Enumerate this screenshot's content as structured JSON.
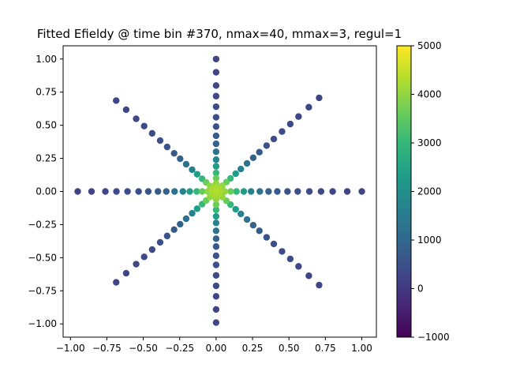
{
  "chart_data": {
    "type": "scatter",
    "title": "Fitted Efieldy @ time bin #370, nmax=40, mmax=3, regul=1",
    "xlabel": "",
    "ylabel": "",
    "xlim": [
      -1.05,
      1.1
    ],
    "ylim": [
      -1.1,
      1.1
    ],
    "x_ticks": [
      -1.0,
      -0.75,
      -0.5,
      -0.25,
      0.0,
      0.25,
      0.5,
      0.75,
      1.0
    ],
    "x_tick_labels": [
      "−1.00",
      "−0.75",
      "−0.50",
      "−0.25",
      "0.00",
      "0.25",
      "0.50",
      "0.75",
      "1.00"
    ],
    "y_ticks": [
      1.0,
      0.75,
      0.5,
      0.25,
      0.0,
      -0.25,
      -0.5,
      -0.75,
      -1.0
    ],
    "y_tick_labels": [
      "1.00",
      "0.75",
      "0.50",
      "0.25",
      "0.00",
      "−0.25",
      "−0.50",
      "−0.75",
      "−1.00"
    ],
    "grid": false,
    "colormap": "viridis",
    "colorbar": {
      "vmin": -1000,
      "vmax": 5000,
      "ticks": [
        5000,
        4000,
        3000,
        2000,
        1000,
        0,
        -1000
      ],
      "tick_labels": [
        "5000",
        "4000",
        "3000",
        "2000",
        "1000",
        "0",
        "−1000"
      ]
    },
    "ray_radii": [
      1.0,
      0.9,
      0.8,
      0.72,
      0.64,
      0.56,
      0.49,
      0.42,
      0.36,
      0.3,
      0.24,
      0.19,
      0.14,
      0.1,
      0.06,
      0.03
    ],
    "ray_values": [
      250,
      270,
      300,
      340,
      390,
      460,
      560,
      700,
      900,
      1250,
      1700,
      2300,
      3000,
      3600,
      4000,
      4200
    ],
    "rays": [
      {
        "direction": "E",
        "dx": 1,
        "dy": 0
      },
      {
        "direction": "NE",
        "dx": 0.7071,
        "dy": 0.7071
      },
      {
        "direction": "N",
        "dx": 0,
        "dy": 1
      },
      {
        "direction": "NW",
        "dx": -0.7071,
        "dy": 0.7071
      },
      {
        "direction": "W",
        "dx": -1,
        "dy": 0
      },
      {
        "direction": "SW",
        "dx": -0.7071,
        "dy": -0.7071
      },
      {
        "direction": "S",
        "dx": 0,
        "dy": -1
      },
      {
        "direction": "SE",
        "dx": 0.7071,
        "dy": -0.7071
      }
    ],
    "ray_scale": {
      "E": 1.0,
      "NE": 1.0,
      "N": 1.0,
      "NW": 0.97,
      "W": 0.95,
      "SW": 0.97,
      "S": 0.99,
      "SE": 1.0
    },
    "center_value": 4300
  }
}
